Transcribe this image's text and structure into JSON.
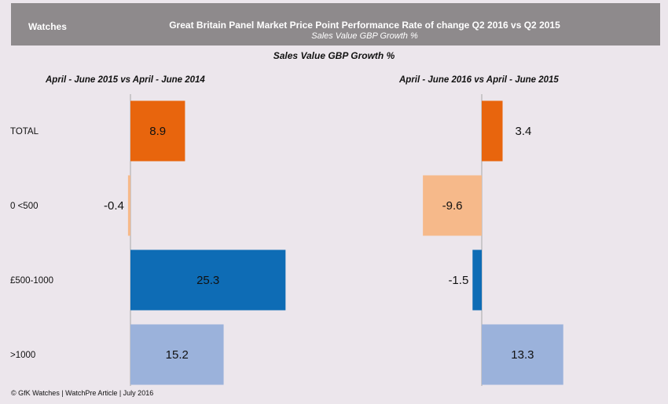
{
  "header": {
    "category": "Watches",
    "title": "Great Britain Panel Market Price Point Performance Rate of change Q2 2016 vs Q2 2015",
    "subtitle": "Sales Value GBP Growth %"
  },
  "footer": {
    "text": "© GfK Watches | WatchPre Article | July 2016"
  },
  "chart_data": {
    "type": "bar",
    "orientation": "horizontal",
    "title": "Sales Value GBP  Growth %",
    "categories": [
      "TOTAL",
      "0 <500",
      "£500-1000",
      ">1000"
    ],
    "bar_colors": [
      "#e8650d",
      "#f6b98a",
      "#0e6cb5",
      "#9bb2db"
    ],
    "panels": [
      {
        "title": "April - June 2015 vs April - June 2014",
        "values": [
          8.9,
          -0.4,
          25.3,
          15.2
        ]
      },
      {
        "title": "April - June 2016 vs April - June 2015",
        "values": [
          3.4,
          -9.6,
          -1.5,
          13.3
        ]
      }
    ],
    "grid": false,
    "legend": "none",
    "data_labels": true
  }
}
